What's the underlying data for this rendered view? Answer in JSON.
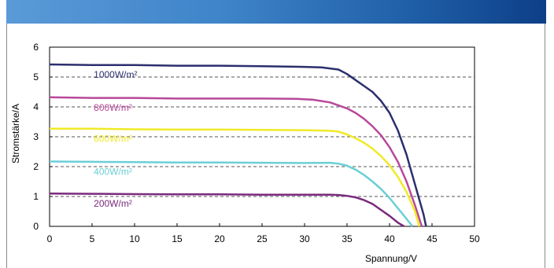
{
  "chart_data": {
    "type": "line",
    "xlabel": "Spannung/V",
    "ylabel": "Stromstärke/A",
    "xlim": [
      0,
      50
    ],
    "ylim": [
      0,
      6
    ],
    "x_ticks": [
      0,
      5,
      10,
      15,
      20,
      25,
      30,
      35,
      40,
      45,
      50
    ],
    "y_ticks": [
      0,
      1,
      2,
      3,
      4,
      5,
      6
    ],
    "grid": "horizontal dashed",
    "series": [
      {
        "name": "1000W/m²",
        "color": "#2b2f6e",
        "x": [
          0,
          5,
          10,
          15,
          20,
          25,
          30,
          32,
          34,
          35,
          36,
          37,
          38,
          39,
          40,
          41,
          42,
          43,
          44,
          44.3
        ],
        "y": [
          5.42,
          5.4,
          5.4,
          5.38,
          5.38,
          5.36,
          5.34,
          5.32,
          5.25,
          5.1,
          4.9,
          4.7,
          4.5,
          4.2,
          3.8,
          3.2,
          2.4,
          1.4,
          0.4,
          0
        ]
      },
      {
        "name": "800W/m²",
        "color": "#b8489a",
        "x": [
          0,
          5,
          10,
          15,
          20,
          25,
          29,
          31,
          33,
          35,
          36,
          37,
          38,
          39,
          40,
          41,
          42,
          43,
          43.8
        ],
        "y": [
          4.32,
          4.3,
          4.3,
          4.28,
          4.28,
          4.28,
          4.27,
          4.24,
          4.15,
          3.95,
          3.8,
          3.6,
          3.35,
          3.05,
          2.65,
          2.15,
          1.5,
          0.7,
          0
        ]
      },
      {
        "name": "600W/m²",
        "color": "#f0ea28",
        "x": [
          0,
          5,
          10,
          15,
          20,
          25,
          30,
          33,
          34,
          35,
          36,
          37,
          38,
          39,
          40,
          41,
          42,
          43,
          43.5
        ],
        "y": [
          3.27,
          3.27,
          3.25,
          3.24,
          3.24,
          3.23,
          3.22,
          3.2,
          3.17,
          3.08,
          2.95,
          2.8,
          2.6,
          2.35,
          2.05,
          1.65,
          1.15,
          0.5,
          0
        ]
      },
      {
        "name": "400W/m²",
        "color": "#6bcfd6",
        "x": [
          0,
          5,
          10,
          15,
          20,
          25,
          30,
          33,
          34,
          35,
          36,
          37,
          38,
          39,
          40,
          41,
          42,
          42.7
        ],
        "y": [
          2.17,
          2.16,
          2.15,
          2.14,
          2.14,
          2.13,
          2.12,
          2.13,
          2.1,
          2.03,
          1.9,
          1.72,
          1.5,
          1.25,
          0.95,
          0.6,
          0.25,
          0
        ]
      },
      {
        "name": "200W/m²",
        "color": "#7a2a7e",
        "x": [
          0,
          5,
          10,
          15,
          20,
          25,
          30,
          33,
          34,
          35,
          36,
          37,
          38,
          39,
          40,
          41,
          41.7
        ],
        "y": [
          1.1,
          1.09,
          1.08,
          1.07,
          1.07,
          1.06,
          1.06,
          1.06,
          1.05,
          1.02,
          0.97,
          0.88,
          0.75,
          0.55,
          0.35,
          0.12,
          0
        ]
      }
    ],
    "series_label_colors": [
      "#2b2f6e",
      "#b8489a",
      "#f0ea28",
      "#6bcfd6",
      "#7a2a7e"
    ]
  }
}
